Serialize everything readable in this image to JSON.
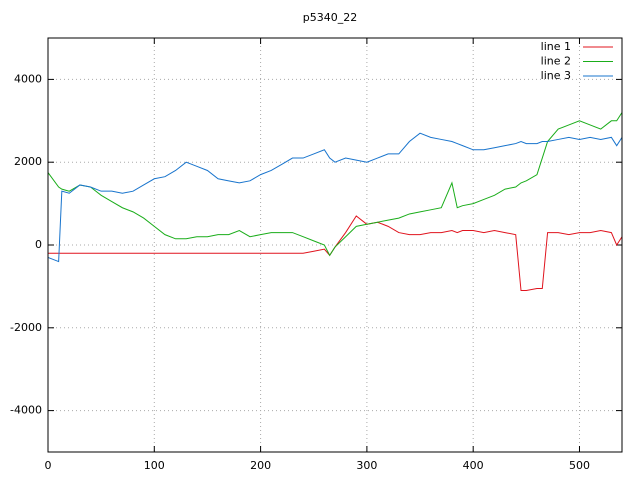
{
  "chart_data": {
    "type": "line",
    "title": "p5340_22",
    "x": [
      0,
      10,
      13,
      20,
      30,
      40,
      50,
      60,
      70,
      80,
      90,
      100,
      110,
      120,
      130,
      140,
      150,
      160,
      170,
      180,
      190,
      200,
      210,
      220,
      230,
      240,
      250,
      260,
      265,
      270,
      280,
      290,
      300,
      310,
      320,
      330,
      340,
      350,
      360,
      370,
      380,
      385,
      390,
      400,
      410,
      420,
      430,
      440,
      445,
      450,
      460,
      465,
      470,
      480,
      490,
      500,
      510,
      520,
      530,
      535,
      540
    ],
    "series": [
      {
        "name": "line 1",
        "color": "#e0141e",
        "values": [
          -200,
          -200,
          -200,
          -200,
          -200,
          -200,
          -200,
          -200,
          -200,
          -200,
          -200,
          -200,
          -200,
          -200,
          -200,
          -200,
          -200,
          -200,
          -200,
          -200,
          -200,
          -200,
          -200,
          -200,
          -200,
          -200,
          -150,
          -100,
          -250,
          -50,
          300,
          700,
          500,
          550,
          450,
          300,
          250,
          250,
          300,
          300,
          350,
          300,
          350,
          350,
          300,
          350,
          300,
          250,
          -1100,
          -1100,
          -1050,
          -1050,
          300,
          300,
          250,
          300,
          300,
          350,
          300,
          0,
          200
        ]
      },
      {
        "name": "line 2",
        "color": "#1aad1a",
        "values": [
          1750,
          1400,
          1350,
          1300,
          1450,
          1400,
          1200,
          1050,
          900,
          800,
          650,
          450,
          250,
          150,
          150,
          200,
          200,
          250,
          250,
          350,
          200,
          250,
          300,
          300,
          300,
          200,
          100,
          0,
          -250,
          -50,
          200,
          450,
          500,
          550,
          600,
          650,
          750,
          800,
          850,
          900,
          1500,
          900,
          950,
          1000,
          1100,
          1200,
          1350,
          1400,
          1500,
          1550,
          1700,
          2100,
          2500,
          2800,
          2900,
          3000,
          2900,
          2800,
          3000,
          3000,
          3200
        ]
      },
      {
        "name": "line 3",
        "color": "#1874cd",
        "values": [
          -300,
          -400,
          1300,
          1250,
          1450,
          1400,
          1300,
          1300,
          1250,
          1300,
          1450,
          1600,
          1650,
          1800,
          2000,
          1900,
          1800,
          1600,
          1550,
          1500,
          1550,
          1700,
          1800,
          1950,
          2100,
          2100,
          2200,
          2300,
          2100,
          2000,
          2100,
          2050,
          2000,
          2100,
          2200,
          2200,
          2500,
          2700,
          2600,
          2550,
          2500,
          2450,
          2400,
          2300,
          2300,
          2350,
          2400,
          2450,
          2500,
          2450,
          2450,
          2500,
          2500,
          2550,
          2600,
          2550,
          2600,
          2550,
          2600,
          2400,
          2600
        ]
      }
    ],
    "xlim": [
      0,
      540
    ],
    "xticks": [
      0,
      100,
      200,
      300,
      400,
      500
    ],
    "ylim": [
      -5000,
      5000
    ],
    "yticks": [
      -4000,
      -2000,
      0,
      2000,
      4000
    ],
    "grid": true,
    "legend": "top-right"
  }
}
